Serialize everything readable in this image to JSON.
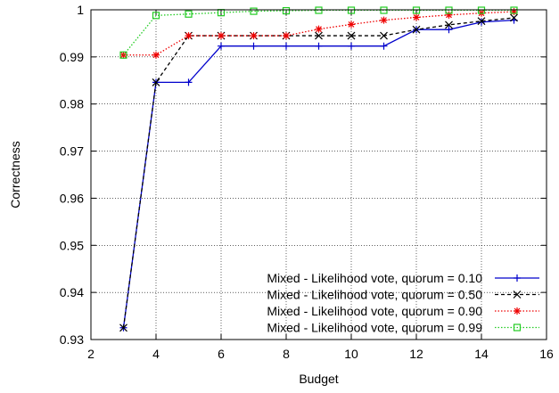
{
  "chart_data": {
    "type": "line",
    "title": "",
    "xlabel": "Budget",
    "ylabel": "Correctness",
    "xlim": [
      2,
      16
    ],
    "ylim": [
      0.93,
      1
    ],
    "xticks": [
      2,
      4,
      6,
      8,
      10,
      12,
      14,
      16
    ],
    "yticks": [
      0.93,
      0.94,
      0.95,
      0.96,
      0.97,
      0.98,
      0.99,
      1
    ],
    "xtick_labels": [
      "2",
      "4",
      "6",
      "8",
      "10",
      "12",
      "14",
      "16"
    ],
    "ytick_labels": [
      "0.93",
      "0.94",
      "0.95",
      "0.96",
      "0.97",
      "0.98",
      "0.99",
      "1"
    ],
    "grid": true,
    "legend_position": "bottom-right",
    "series": [
      {
        "name": "Mixed - Likelihood vote, quorum = 0.10",
        "color": "#0000cc",
        "dash": "solid",
        "marker": "plus",
        "x": [
          3,
          4,
          5,
          6,
          7,
          8,
          9,
          10,
          11,
          12,
          13,
          14,
          15
        ],
        "y": [
          0.9325,
          0.9846,
          0.9846,
          0.9923,
          0.9923,
          0.9923,
          0.9923,
          0.9923,
          0.9923,
          0.9958,
          0.9958,
          0.9974,
          0.9978
        ]
      },
      {
        "name": "Mixed - Likelihood vote, quorum = 0.50",
        "color": "#000000",
        "dash": "dashed",
        "marker": "cross",
        "x": [
          3,
          4,
          5,
          6,
          7,
          8,
          9,
          10,
          11,
          12,
          13,
          14,
          15
        ],
        "y": [
          0.9325,
          0.9846,
          0.9945,
          0.9945,
          0.9945,
          0.9945,
          0.9945,
          0.9945,
          0.9945,
          0.9958,
          0.9968,
          0.9976,
          0.9983
        ]
      },
      {
        "name": "Mixed - Likelihood vote, quorum = 0.90",
        "color": "#ee0000",
        "dash": "dotted",
        "marker": "star",
        "x": [
          3,
          4,
          5,
          6,
          7,
          8,
          9,
          10,
          11,
          12,
          13,
          14,
          15
        ],
        "y": [
          0.9904,
          0.9904,
          0.9945,
          0.9945,
          0.9945,
          0.9945,
          0.9959,
          0.9969,
          0.9978,
          0.9984,
          0.9989,
          0.9993,
          0.9996
        ]
      },
      {
        "name": "Mixed - Likelihood vote, quorum = 0.99",
        "color": "#22cc22",
        "dash": "dotted",
        "marker": "square",
        "x": [
          3,
          4,
          5,
          6,
          7,
          8,
          9,
          10,
          11,
          12,
          13,
          14,
          15
        ],
        "y": [
          0.9904,
          0.9988,
          0.9991,
          0.9994,
          0.9997,
          0.9998,
          0.9999,
          0.9999,
          0.9999,
          0.9999,
          0.9999,
          0.9999,
          0.9999
        ]
      }
    ]
  }
}
